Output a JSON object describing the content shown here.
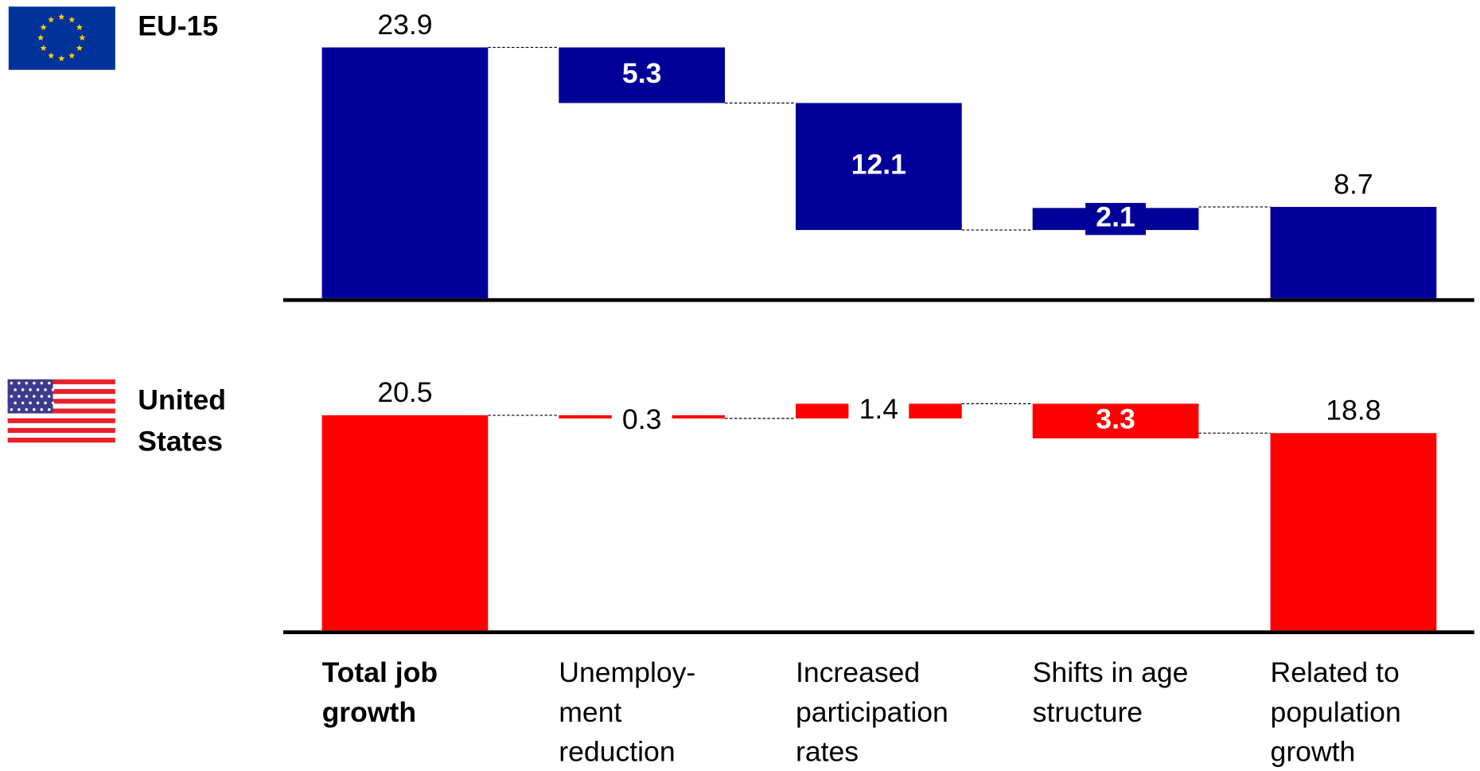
{
  "categories": [
    "Total job growth",
    "Unemploy- ment reduction",
    "Increased participation rates",
    "Shifts in age structure",
    "Related to population growth"
  ],
  "chart_data": [
    {
      "type": "waterfall",
      "title": "EU-15",
      "color": "#000099",
      "values": [
        23.9,
        -5.3,
        -12.1,
        2.1,
        8.7
      ],
      "value_labels": [
        "23.9",
        "5.3",
        "12.1",
        "2.1",
        "8.7"
      ],
      "ylim": [
        0,
        25
      ]
    },
    {
      "type": "waterfall",
      "title": "United States",
      "color": "#ff0000",
      "values": [
        20.5,
        -0.3,
        1.4,
        -3.3,
        18.8
      ],
      "value_labels": [
        "20.5",
        "0.3",
        "1.4",
        "3.3",
        "18.8"
      ],
      "ylim": [
        0,
        25
      ]
    }
  ]
}
